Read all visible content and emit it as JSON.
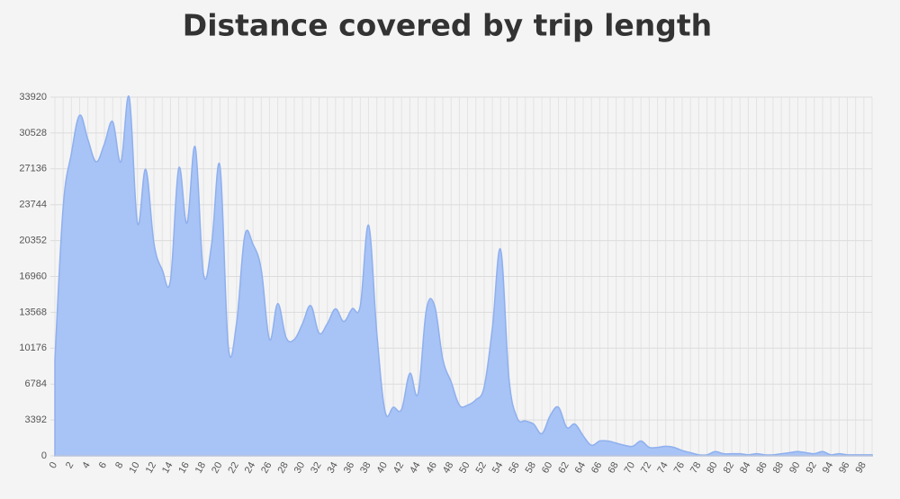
{
  "chart_data": {
    "type": "area",
    "title": "Distance covered by trip length",
    "categories": [
      "0",
      null,
      "2",
      null,
      "4",
      null,
      "6",
      null,
      "8",
      null,
      "10",
      null,
      "12",
      null,
      "14",
      null,
      "16",
      null,
      "18",
      null,
      "20",
      null,
      "22",
      null,
      "24",
      null,
      "26",
      null,
      "28",
      null,
      "30",
      null,
      "32",
      null,
      "34",
      null,
      "36",
      null,
      "38",
      null,
      "40",
      null,
      "42",
      null,
      "44",
      null,
      "46",
      null,
      "48",
      null,
      "50",
      null,
      "52",
      null,
      "54",
      null,
      "56",
      null,
      "58",
      null,
      "60",
      null,
      "62",
      null,
      "64",
      null,
      "66",
      null,
      "68",
      null,
      "70",
      null,
      "72",
      null,
      "74",
      null,
      "76",
      null,
      "78",
      null,
      "80",
      null,
      "82",
      null,
      "84",
      null,
      "86",
      null,
      "88",
      null,
      "90",
      null,
      "92",
      null,
      "94",
      null,
      "96",
      null,
      "98",
      null
    ],
    "values": [
      9100,
      23500,
      28600,
      32200,
      29900,
      27800,
      29500,
      31600,
      27800,
      33920,
      22000,
      27100,
      20100,
      17600,
      16600,
      27200,
      22000,
      29200,
      17200,
      20100,
      27400,
      10400,
      12500,
      20800,
      20000,
      17600,
      11000,
      14400,
      11200,
      11000,
      12500,
      14200,
      11600,
      12500,
      13900,
      12700,
      13900,
      14200,
      21800,
      11600,
      4200,
      4600,
      4400,
      7800,
      5900,
      13800,
      14200,
      9100,
      7000,
      4800,
      4800,
      5300,
      6500,
      12100,
      19500,
      7400,
      3600,
      3300,
      3000,
      2100,
      3800,
      4600,
      2700,
      3000,
      1900,
      1000,
      1400,
      1400,
      1200,
      1000,
      900,
      1400,
      800,
      800,
      900,
      800,
      500,
      300,
      100,
      100,
      400,
      200,
      200,
      200,
      100,
      200,
      100,
      100,
      200,
      300,
      400,
      300,
      200,
      400,
      100,
      200,
      100,
      100,
      100,
      100
    ],
    "color": "#a8c3f5",
    "line_color": "#8fb0ee",
    "ylim": [
      0,
      33920
    ],
    "yticks": [
      0,
      3392,
      6784,
      10176,
      13568,
      16960,
      20352,
      23744,
      27136,
      30528,
      33920
    ],
    "grid": true
  }
}
